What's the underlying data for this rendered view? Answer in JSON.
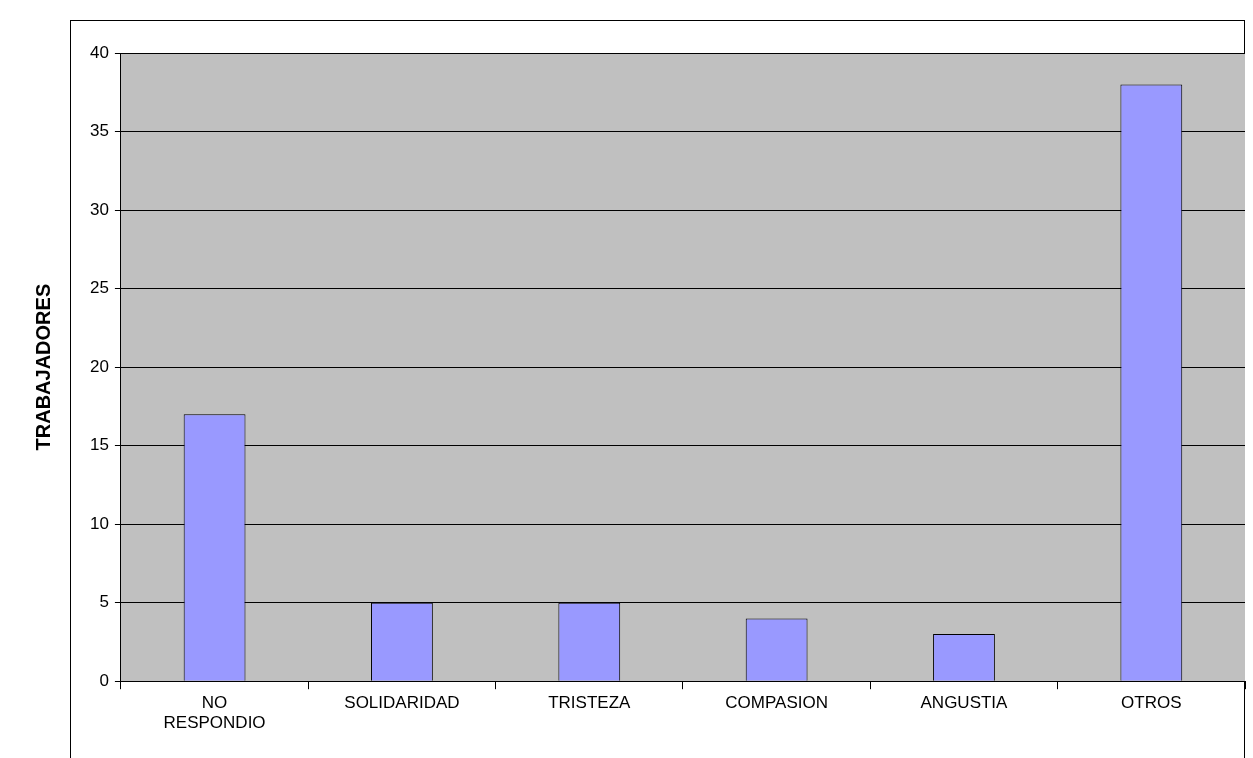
{
  "chart_data": {
    "type": "bar",
    "ylabel": "TRABAJADORES",
    "categories": [
      "NO RESPONDIO",
      "SOLIDARIDAD",
      "TRISTEZA",
      "COMPASION",
      "ANGUSTIA",
      "OTROS"
    ],
    "values": [
      17,
      5,
      5,
      4,
      3,
      38
    ],
    "color": "#9999ff",
    "ylim": [
      0,
      40
    ],
    "yticks": [
      0,
      5,
      10,
      15,
      20,
      25,
      30,
      35,
      40
    ],
    "grid": "y",
    "legend": false
  }
}
